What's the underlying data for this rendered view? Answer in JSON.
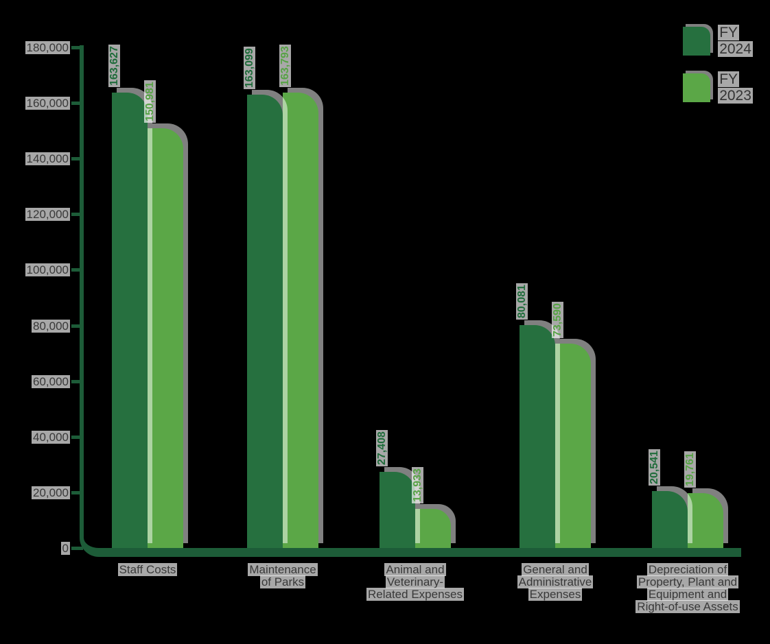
{
  "chart_data": {
    "type": "bar",
    "title": "",
    "xlabel": "",
    "ylabel": "",
    "grid": false,
    "categories": [
      "Staff Costs",
      "Maintenance of Parks",
      "Animal and Veterinary-Related Expenses",
      "General and Administrative Expenses",
      "Depreciation of Property, Plant and Equipment and Right-of-use Assets"
    ],
    "category_label_lines": [
      [
        "Staff Costs"
      ],
      [
        "Maintenance",
        "of Parks"
      ],
      [
        "Animal and",
        "Veterinary-",
        "Related Expenses"
      ],
      [
        "General and",
        "Administrative",
        "Expenses"
      ],
      [
        "Depreciation of",
        "Property, Plant and",
        "Equipment and",
        "Right-of-use Assets"
      ]
    ],
    "series": [
      {
        "name": "FY 2024",
        "color": "#26703f",
        "label_color": "#1f6c3b",
        "values": [
          163627,
          163099,
          27408,
          80081,
          20541
        ],
        "value_labels": [
          "163,627",
          "163,099",
          "27,408",
          "80,081",
          "20,541"
        ]
      },
      {
        "name": "FY 2023",
        "color": "#5ba747",
        "label_color": "#57a345",
        "values": [
          150981,
          163793,
          13933,
          73590,
          19761
        ],
        "value_labels": [
          "150,981",
          "163,793",
          "13,933",
          "73,590",
          "19,761"
        ]
      }
    ],
    "y_axis": {
      "min": 0,
      "max": 180000,
      "step": 20000,
      "tick_labels": [
        "0",
        "20,000",
        "40,000",
        "60,000",
        "80,000",
        "100,000",
        "120,000",
        "140,000",
        "160,000",
        "180,000"
      ]
    },
    "legend": {
      "position": "top-right",
      "items": [
        {
          "label": "FY 2024",
          "color": "#26703f"
        },
        {
          "label": "FY 2023",
          "color": "#5ba747"
        }
      ]
    }
  },
  "colors": {
    "background": "#000000",
    "axis": "#1d5c38",
    "text": "#383838",
    "highlight": "rgba(255,255,255,0.66)"
  }
}
